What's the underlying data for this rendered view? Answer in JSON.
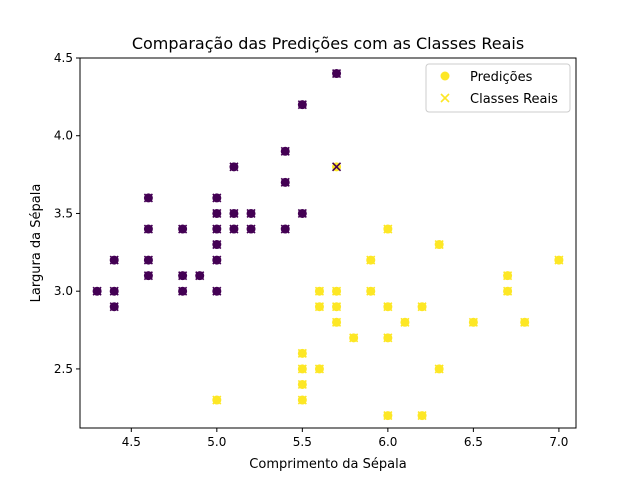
{
  "chart_data": {
    "type": "scatter",
    "title": "Comparação das Predições com as Classes Reais",
    "xlabel": "Comprimento da Sépala",
    "ylabel": "Largura da Sépala",
    "xlim": [
      4.2,
      7.1
    ],
    "ylim": [
      2.12,
      4.5
    ],
    "xticks": [
      4.5,
      5.0,
      5.5,
      6.0,
      6.5,
      7.0
    ],
    "xtick_labels": [
      "4.5",
      "5.0",
      "5.5",
      "6.0",
      "6.5",
      "7.0"
    ],
    "yticks": [
      2.5,
      3.0,
      3.5,
      4.0,
      4.5
    ],
    "ytick_labels": [
      "2.5",
      "3.0",
      "3.5",
      "4.0",
      "4.5"
    ],
    "grid": false,
    "legend_position": "top-right",
    "class_colors": {
      "class_0": "#440154",
      "class_1": "#fde725"
    },
    "series": [
      {
        "name": "Predições",
        "marker": "circle",
        "legend_color": "#fde725",
        "points": [
          {
            "x": 4.3,
            "y": 3.0,
            "cls": 0
          },
          {
            "x": 4.4,
            "y": 3.2,
            "cls": 0
          },
          {
            "x": 4.4,
            "y": 3.0,
            "cls": 0
          },
          {
            "x": 4.4,
            "y": 2.9,
            "cls": 0
          },
          {
            "x": 4.6,
            "y": 3.6,
            "cls": 0
          },
          {
            "x": 4.6,
            "y": 3.4,
            "cls": 0
          },
          {
            "x": 4.6,
            "y": 3.2,
            "cls": 0
          },
          {
            "x": 4.6,
            "y": 3.1,
            "cls": 0
          },
          {
            "x": 4.8,
            "y": 3.4,
            "cls": 0
          },
          {
            "x": 4.8,
            "y": 3.1,
            "cls": 0
          },
          {
            "x": 4.8,
            "y": 3.0,
            "cls": 0
          },
          {
            "x": 4.9,
            "y": 3.1,
            "cls": 0
          },
          {
            "x": 5.0,
            "y": 3.6,
            "cls": 0
          },
          {
            "x": 5.0,
            "y": 3.5,
            "cls": 0
          },
          {
            "x": 5.0,
            "y": 3.4,
            "cls": 0
          },
          {
            "x": 5.0,
            "y": 3.3,
            "cls": 0
          },
          {
            "x": 5.0,
            "y": 3.2,
            "cls": 0
          },
          {
            "x": 5.0,
            "y": 3.0,
            "cls": 0
          },
          {
            "x": 5.1,
            "y": 3.8,
            "cls": 0
          },
          {
            "x": 5.1,
            "y": 3.5,
            "cls": 0
          },
          {
            "x": 5.1,
            "y": 3.4,
            "cls": 0
          },
          {
            "x": 5.2,
            "y": 3.5,
            "cls": 0
          },
          {
            "x": 5.2,
            "y": 3.4,
            "cls": 0
          },
          {
            "x": 5.4,
            "y": 3.9,
            "cls": 0
          },
          {
            "x": 5.4,
            "y": 3.7,
            "cls": 0
          },
          {
            "x": 5.4,
            "y": 3.4,
            "cls": 0
          },
          {
            "x": 5.5,
            "y": 4.2,
            "cls": 0
          },
          {
            "x": 5.5,
            "y": 3.5,
            "cls": 0
          },
          {
            "x": 5.7,
            "y": 4.4,
            "cls": 0
          },
          {
            "x": 5.7,
            "y": 3.8,
            "cls": 1
          },
          {
            "x": 5.0,
            "y": 2.3,
            "cls": 1
          },
          {
            "x": 5.5,
            "y": 2.6,
            "cls": 1
          },
          {
            "x": 5.5,
            "y": 2.5,
            "cls": 1
          },
          {
            "x": 5.5,
            "y": 2.4,
            "cls": 1
          },
          {
            "x": 5.5,
            "y": 2.3,
            "cls": 1
          },
          {
            "x": 5.6,
            "y": 3.0,
            "cls": 1
          },
          {
            "x": 5.6,
            "y": 2.9,
            "cls": 1
          },
          {
            "x": 5.6,
            "y": 2.5,
            "cls": 1
          },
          {
            "x": 5.7,
            "y": 3.0,
            "cls": 1
          },
          {
            "x": 5.7,
            "y": 2.9,
            "cls": 1
          },
          {
            "x": 5.7,
            "y": 2.8,
            "cls": 1
          },
          {
            "x": 5.8,
            "y": 2.7,
            "cls": 1
          },
          {
            "x": 5.9,
            "y": 3.2,
            "cls": 1
          },
          {
            "x": 5.9,
            "y": 3.0,
            "cls": 1
          },
          {
            "x": 6.0,
            "y": 3.4,
            "cls": 1
          },
          {
            "x": 6.0,
            "y": 2.9,
            "cls": 1
          },
          {
            "x": 6.0,
            "y": 2.7,
            "cls": 1
          },
          {
            "x": 6.0,
            "y": 2.2,
            "cls": 1
          },
          {
            "x": 6.1,
            "y": 2.8,
            "cls": 1
          },
          {
            "x": 6.2,
            "y": 2.9,
            "cls": 1
          },
          {
            "x": 6.2,
            "y": 2.2,
            "cls": 1
          },
          {
            "x": 6.3,
            "y": 3.3,
            "cls": 1
          },
          {
            "x": 6.3,
            "y": 2.5,
            "cls": 1
          },
          {
            "x": 6.5,
            "y": 2.8,
            "cls": 1
          },
          {
            "x": 6.7,
            "y": 3.1,
            "cls": 1
          },
          {
            "x": 6.7,
            "y": 3.0,
            "cls": 1
          },
          {
            "x": 6.8,
            "y": 2.8,
            "cls": 1
          },
          {
            "x": 7.0,
            "y": 3.2,
            "cls": 1
          }
        ]
      },
      {
        "name": "Classes Reais",
        "marker": "x",
        "legend_color": "#fde725",
        "points": [
          {
            "x": 4.3,
            "y": 3.0,
            "cls": 0
          },
          {
            "x": 4.4,
            "y": 3.2,
            "cls": 0
          },
          {
            "x": 4.4,
            "y": 3.0,
            "cls": 0
          },
          {
            "x": 4.4,
            "y": 2.9,
            "cls": 0
          },
          {
            "x": 4.6,
            "y": 3.6,
            "cls": 0
          },
          {
            "x": 4.6,
            "y": 3.4,
            "cls": 0
          },
          {
            "x": 4.6,
            "y": 3.2,
            "cls": 0
          },
          {
            "x": 4.6,
            "y": 3.1,
            "cls": 0
          },
          {
            "x": 4.8,
            "y": 3.4,
            "cls": 0
          },
          {
            "x": 4.8,
            "y": 3.1,
            "cls": 0
          },
          {
            "x": 4.8,
            "y": 3.0,
            "cls": 0
          },
          {
            "x": 4.9,
            "y": 3.1,
            "cls": 0
          },
          {
            "x": 5.0,
            "y": 3.6,
            "cls": 0
          },
          {
            "x": 5.0,
            "y": 3.5,
            "cls": 0
          },
          {
            "x": 5.0,
            "y": 3.4,
            "cls": 0
          },
          {
            "x": 5.0,
            "y": 3.3,
            "cls": 0
          },
          {
            "x": 5.0,
            "y": 3.2,
            "cls": 0
          },
          {
            "x": 5.0,
            "y": 3.0,
            "cls": 0
          },
          {
            "x": 5.1,
            "y": 3.8,
            "cls": 0
          },
          {
            "x": 5.1,
            "y": 3.5,
            "cls": 0
          },
          {
            "x": 5.1,
            "y": 3.4,
            "cls": 0
          },
          {
            "x": 5.2,
            "y": 3.5,
            "cls": 0
          },
          {
            "x": 5.2,
            "y": 3.4,
            "cls": 0
          },
          {
            "x": 5.4,
            "y": 3.9,
            "cls": 0
          },
          {
            "x": 5.4,
            "y": 3.7,
            "cls": 0
          },
          {
            "x": 5.4,
            "y": 3.4,
            "cls": 0
          },
          {
            "x": 5.5,
            "y": 4.2,
            "cls": 0
          },
          {
            "x": 5.5,
            "y": 3.5,
            "cls": 0
          },
          {
            "x": 5.7,
            "y": 4.4,
            "cls": 0
          },
          {
            "x": 5.7,
            "y": 3.8,
            "cls": 0
          },
          {
            "x": 5.0,
            "y": 2.3,
            "cls": 1
          },
          {
            "x": 5.5,
            "y": 2.6,
            "cls": 1
          },
          {
            "x": 5.5,
            "y": 2.5,
            "cls": 1
          },
          {
            "x": 5.5,
            "y": 2.4,
            "cls": 1
          },
          {
            "x": 5.5,
            "y": 2.3,
            "cls": 1
          },
          {
            "x": 5.6,
            "y": 3.0,
            "cls": 1
          },
          {
            "x": 5.6,
            "y": 2.9,
            "cls": 1
          },
          {
            "x": 5.6,
            "y": 2.5,
            "cls": 1
          },
          {
            "x": 5.7,
            "y": 3.0,
            "cls": 1
          },
          {
            "x": 5.7,
            "y": 2.9,
            "cls": 1
          },
          {
            "x": 5.7,
            "y": 2.8,
            "cls": 1
          },
          {
            "x": 5.8,
            "y": 2.7,
            "cls": 1
          },
          {
            "x": 5.9,
            "y": 3.2,
            "cls": 1
          },
          {
            "x": 5.9,
            "y": 3.0,
            "cls": 1
          },
          {
            "x": 6.0,
            "y": 3.4,
            "cls": 1
          },
          {
            "x": 6.0,
            "y": 2.9,
            "cls": 1
          },
          {
            "x": 6.0,
            "y": 2.7,
            "cls": 1
          },
          {
            "x": 6.0,
            "y": 2.2,
            "cls": 1
          },
          {
            "x": 6.1,
            "y": 2.8,
            "cls": 1
          },
          {
            "x": 6.2,
            "y": 2.9,
            "cls": 1
          },
          {
            "x": 6.2,
            "y": 2.2,
            "cls": 1
          },
          {
            "x": 6.3,
            "y": 3.3,
            "cls": 1
          },
          {
            "x": 6.3,
            "y": 2.5,
            "cls": 1
          },
          {
            "x": 6.5,
            "y": 2.8,
            "cls": 1
          },
          {
            "x": 6.7,
            "y": 3.1,
            "cls": 1
          },
          {
            "x": 6.7,
            "y": 3.0,
            "cls": 1
          },
          {
            "x": 6.8,
            "y": 2.8,
            "cls": 1
          },
          {
            "x": 7.0,
            "y": 3.2,
            "cls": 1
          }
        ]
      }
    ]
  }
}
